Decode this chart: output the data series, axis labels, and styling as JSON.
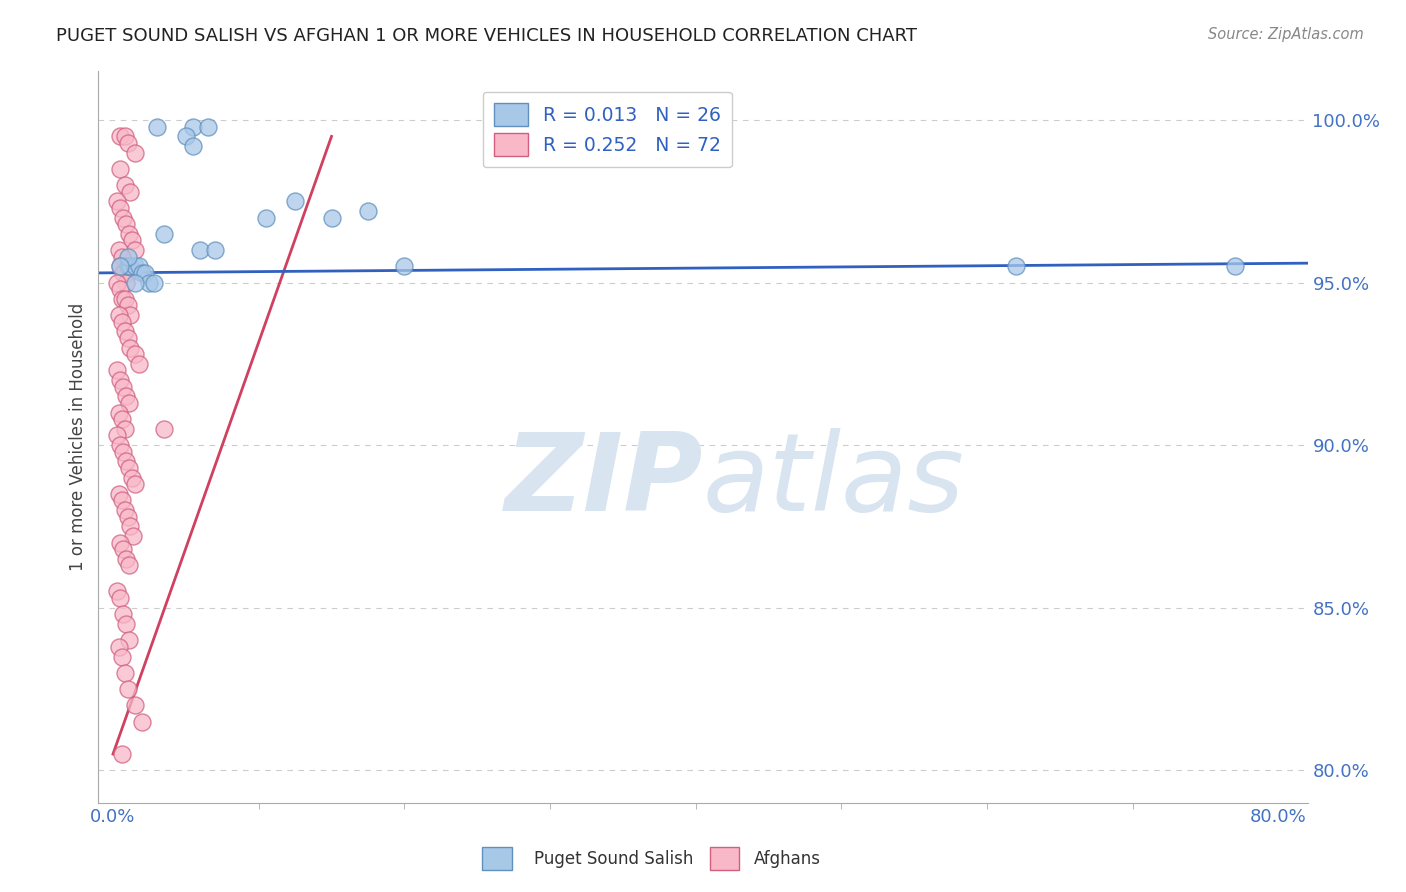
{
  "title": "PUGET SOUND SALISH VS AFGHAN 1 OR MORE VEHICLES IN HOUSEHOLD CORRELATION CHART",
  "source": "Source: ZipAtlas.com",
  "ylabel": "1 or more Vehicles in Household",
  "xlabel_ticks": [
    0.0,
    80.0
  ],
  "xlabel_minor_ticks": [
    10.0,
    20.0,
    30.0,
    40.0,
    50.0,
    60.0,
    70.0
  ],
  "ylabel_ticks": [
    80.0,
    85.0,
    90.0,
    95.0,
    100.0
  ],
  "xlim": [
    -1.0,
    82.0
  ],
  "ylim": [
    79.0,
    101.5
  ],
  "legend1_r": "0.013",
  "legend1_n": "26",
  "legend2_r": "0.252",
  "legend2_n": "72",
  "legend_label1": "Puget Sound Salish",
  "legend_label2": "Afghans",
  "blue_color": "#a8c8e8",
  "blue_edge_color": "#6090c0",
  "pink_color": "#f8b8c8",
  "pink_edge_color": "#d06080",
  "blue_line_color": "#3060c0",
  "pink_line_color": "#d04060",
  "background_color": "#ffffff",
  "watermark_color": "#d8e4f0",
  "grid_color": "#cccccc",
  "title_color": "#222222",
  "source_color": "#888888",
  "tick_color": "#4472c4",
  "salish_x": [
    3.0,
    5.5,
    6.5,
    5.0,
    5.5,
    10.5,
    12.5,
    15.0,
    17.5,
    1.0,
    1.2,
    1.5,
    1.8,
    2.0,
    2.2,
    2.5,
    2.8,
    1.0,
    1.5,
    0.5,
    3.5,
    6.0,
    7.0,
    20.0,
    62.0,
    77.0
  ],
  "salish_y": [
    99.8,
    99.8,
    99.8,
    99.5,
    99.2,
    97.0,
    97.5,
    97.0,
    97.2,
    95.5,
    95.5,
    95.5,
    95.5,
    95.3,
    95.3,
    95.0,
    95.0,
    95.8,
    95.0,
    95.5,
    96.5,
    96.0,
    96.0,
    95.5,
    95.5,
    95.5
  ],
  "afghan_x": [
    0.5,
    0.8,
    1.0,
    1.5,
    0.5,
    0.8,
    1.2,
    0.3,
    0.5,
    0.7,
    0.9,
    1.1,
    1.3,
    1.5,
    0.4,
    0.6,
    0.8,
    1.0,
    0.5,
    0.7,
    0.9,
    0.3,
    0.5,
    0.6,
    0.8,
    1.0,
    1.2,
    0.4,
    0.6,
    0.8,
    1.0,
    1.2,
    1.5,
    1.8,
    0.3,
    0.5,
    0.7,
    0.9,
    1.1,
    0.4,
    0.6,
    0.8,
    0.3,
    0.5,
    0.7,
    0.9,
    1.1,
    1.3,
    1.5,
    0.4,
    0.6,
    0.8,
    1.0,
    1.2,
    1.4,
    0.5,
    0.7,
    0.9,
    1.1,
    0.3,
    0.5,
    0.7,
    0.9,
    1.1,
    0.4,
    0.6,
    0.8,
    1.0,
    1.5,
    2.0,
    0.6,
    3.5
  ],
  "afghan_y": [
    99.5,
    99.5,
    99.3,
    99.0,
    98.5,
    98.0,
    97.8,
    97.5,
    97.3,
    97.0,
    96.8,
    96.5,
    96.3,
    96.0,
    96.0,
    95.8,
    95.5,
    95.3,
    95.5,
    95.3,
    95.0,
    95.0,
    94.8,
    94.5,
    94.5,
    94.3,
    94.0,
    94.0,
    93.8,
    93.5,
    93.3,
    93.0,
    92.8,
    92.5,
    92.3,
    92.0,
    91.8,
    91.5,
    91.3,
    91.0,
    90.8,
    90.5,
    90.3,
    90.0,
    89.8,
    89.5,
    89.3,
    89.0,
    88.8,
    88.5,
    88.3,
    88.0,
    87.8,
    87.5,
    87.2,
    87.0,
    86.8,
    86.5,
    86.3,
    85.5,
    85.3,
    84.8,
    84.5,
    84.0,
    83.8,
    83.5,
    83.0,
    82.5,
    82.0,
    81.5,
    80.5,
    90.5
  ],
  "blue_trend_x": [
    -1.0,
    82.0
  ],
  "blue_trend_y": [
    95.3,
    95.6
  ],
  "pink_trend_x": [
    0.0,
    15.0
  ],
  "pink_trend_y": [
    80.5,
    99.5
  ]
}
